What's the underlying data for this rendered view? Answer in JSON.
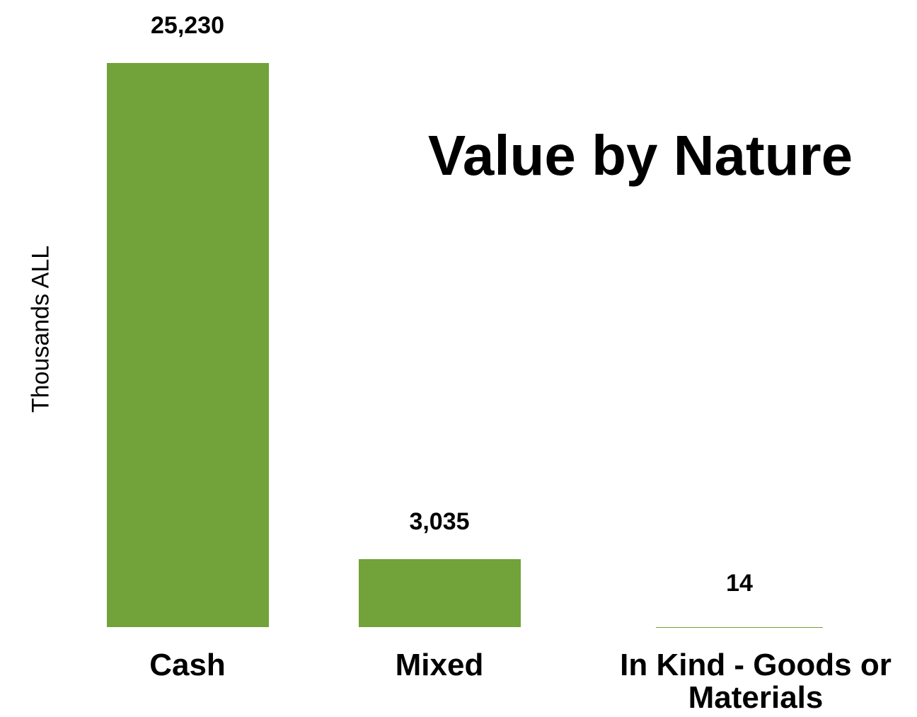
{
  "chart_data": {
    "type": "bar",
    "title": "Value by Nature",
    "y_label": "Thousands ALL",
    "categories": [
      "Cash",
      "Mixed",
      "In Kind - Goods or Materials"
    ],
    "values": [
      25230,
      3035,
      14
    ],
    "value_labels": [
      "25,230",
      "3,035",
      "14"
    ],
    "color": "#72a23a"
  }
}
